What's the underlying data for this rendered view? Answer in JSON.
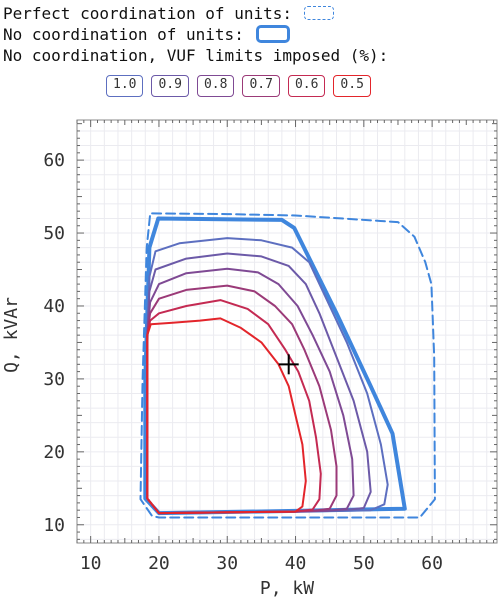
{
  "legend": {
    "perfect_label": "Perfect coordination of units:",
    "nocoord_label": "No coordination of units:",
    "vuf_label": "No coordination, VUF limits imposed (%):",
    "vuf_items": [
      "1.0",
      "0.9",
      "0.8",
      "0.7",
      "0.6",
      "0.5"
    ]
  },
  "colors": {
    "boundary": "#3f86dd",
    "vuf": [
      "#5d6fc0",
      "#6c5aa8",
      "#7f4a94",
      "#9b3a78",
      "#c42a52",
      "#e3252b"
    ],
    "grid": "#ebebf0",
    "frame": "#888888",
    "marker": "#000000"
  },
  "chart_data": {
    "type": "line",
    "title": "",
    "xlabel": "P, kW",
    "ylabel": "Q, kVAr",
    "xlim": [
      8,
      69.5
    ],
    "ylim": [
      7.5,
      65.5
    ],
    "xticks": [
      10,
      20,
      30,
      40,
      50,
      60
    ],
    "yticks": [
      10,
      20,
      30,
      40,
      50,
      60
    ],
    "grid": true,
    "legend_position": "top",
    "series": [
      {
        "name": "Perfect coordination of units",
        "style": "dashed",
        "points": [
          [
            19,
            52.7
          ],
          [
            30,
            52.6
          ],
          [
            40,
            52.4
          ],
          [
            55,
            51.5
          ],
          [
            57.4,
            49.5
          ],
          [
            59,
            46
          ],
          [
            59.9,
            43
          ],
          [
            60.3,
            33
          ],
          [
            60.4,
            13.5
          ],
          [
            58.2,
            11
          ],
          [
            40,
            11
          ],
          [
            20,
            11
          ],
          [
            19,
            11.2
          ],
          [
            17.3,
            13.5
          ],
          [
            17.6,
            30
          ],
          [
            18.2,
            48
          ],
          [
            18.7,
            52.5
          ],
          [
            19,
            52.7
          ]
        ]
      },
      {
        "name": "No coordination of units",
        "style": "solid-thick",
        "points": [
          [
            19.9,
            52
          ],
          [
            38,
            51.8
          ],
          [
            39.8,
            50.7
          ],
          [
            46,
            39
          ],
          [
            51,
            29
          ],
          [
            54.2,
            22.5
          ],
          [
            56,
            12.2
          ],
          [
            40,
            11.9
          ],
          [
            20,
            11.6
          ],
          [
            18,
            13.6
          ],
          [
            18,
            30
          ],
          [
            18.6,
            48
          ],
          [
            19.9,
            52
          ]
        ]
      },
      {
        "name": "1.0",
        "points": [
          [
            18.3,
            36
          ],
          [
            18.6,
            44
          ],
          [
            19.5,
            47.5
          ],
          [
            23,
            48.6
          ],
          [
            30,
            49.3
          ],
          [
            35,
            49
          ],
          [
            39.5,
            48
          ],
          [
            42,
            46
          ],
          [
            44.5,
            41
          ],
          [
            47.5,
            35
          ],
          [
            50.5,
            28
          ],
          [
            52.5,
            21
          ],
          [
            53.5,
            15.5
          ],
          [
            53,
            12.8
          ],
          [
            51,
            12
          ],
          [
            40,
            11.8
          ],
          [
            20,
            11.6
          ],
          [
            18.3,
            13.6
          ],
          [
            18.3,
            36
          ]
        ]
      },
      {
        "name": "0.9",
        "points": [
          [
            18.3,
            36
          ],
          [
            18.6,
            42
          ],
          [
            19.5,
            45
          ],
          [
            24,
            46.5
          ],
          [
            30,
            47.2
          ],
          [
            35,
            46.8
          ],
          [
            39,
            45.5
          ],
          [
            41.5,
            43
          ],
          [
            43.5,
            39
          ],
          [
            46,
            33
          ],
          [
            48.5,
            27
          ],
          [
            50.5,
            20
          ],
          [
            51,
            14.5
          ],
          [
            50,
            12.3
          ],
          [
            47,
            12
          ],
          [
            40,
            11.8
          ],
          [
            20,
            11.6
          ],
          [
            18.3,
            13.6
          ],
          [
            18.3,
            36
          ]
        ]
      },
      {
        "name": "0.8",
        "points": [
          [
            18.3,
            36
          ],
          [
            18.7,
            40.5
          ],
          [
            20,
            43
          ],
          [
            24,
            44.5
          ],
          [
            30,
            45.1
          ],
          [
            34.5,
            44.6
          ],
          [
            37.5,
            43
          ],
          [
            40.3,
            40
          ],
          [
            42.5,
            36
          ],
          [
            45,
            31
          ],
          [
            47,
            25
          ],
          [
            48.3,
            19
          ],
          [
            48.5,
            14
          ],
          [
            47.5,
            12.2
          ],
          [
            44.5,
            11.9
          ],
          [
            40,
            11.8
          ],
          [
            20,
            11.6
          ],
          [
            18.3,
            13.6
          ],
          [
            18.3,
            36
          ]
        ]
      },
      {
        "name": "0.7",
        "points": [
          [
            18.3,
            36
          ],
          [
            18.7,
            39
          ],
          [
            20,
            41
          ],
          [
            24,
            42.2
          ],
          [
            30,
            42.8
          ],
          [
            34,
            42
          ],
          [
            37,
            40
          ],
          [
            39.5,
            37.5
          ],
          [
            41.3,
            34
          ],
          [
            43.5,
            29
          ],
          [
            45.2,
            23
          ],
          [
            46,
            18
          ],
          [
            46,
            14
          ],
          [
            45,
            12.2
          ],
          [
            42.5,
            11.9
          ],
          [
            40,
            11.8
          ],
          [
            20,
            11.6
          ],
          [
            18.3,
            13.6
          ],
          [
            18.3,
            36
          ]
        ]
      },
      {
        "name": "0.6",
        "points": [
          [
            18.3,
            36
          ],
          [
            18.7,
            38
          ],
          [
            20,
            39
          ],
          [
            24,
            40
          ],
          [
            29,
            40.8
          ],
          [
            33,
            39.6
          ],
          [
            36,
            37.5
          ],
          [
            38.5,
            34
          ],
          [
            40.4,
            31
          ],
          [
            42,
            27
          ],
          [
            43,
            22
          ],
          [
            43.7,
            17
          ],
          [
            43.5,
            13.5
          ],
          [
            42.5,
            12.1
          ],
          [
            40,
            11.8
          ],
          [
            20,
            11.6
          ],
          [
            18.3,
            13.6
          ],
          [
            18.3,
            36
          ]
        ]
      },
      {
        "name": "0.5",
        "points": [
          [
            18.3,
            36
          ],
          [
            18.8,
            37.5
          ],
          [
            22,
            37.7
          ],
          [
            26,
            38
          ],
          [
            29,
            38.3
          ],
          [
            32,
            37
          ],
          [
            35,
            35
          ],
          [
            37.5,
            32
          ],
          [
            39,
            29
          ],
          [
            40,
            25
          ],
          [
            41,
            21
          ],
          [
            41.5,
            16
          ],
          [
            41,
            12.5
          ],
          [
            40,
            11.8
          ],
          [
            20,
            11.6
          ],
          [
            18.3,
            13.6
          ],
          [
            18.3,
            36
          ]
        ]
      }
    ],
    "marker": {
      "symbol": "+",
      "x": 39,
      "y": 32
    }
  }
}
